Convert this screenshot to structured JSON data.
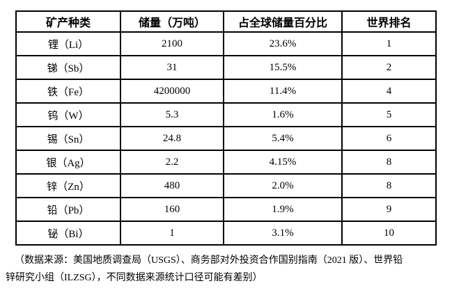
{
  "table": {
    "headers": [
      "矿产种类",
      "储量（万吨）",
      "占全球储量百分比",
      "世界排名"
    ],
    "rows": [
      [
        "锂（Li）",
        "2100",
        "23.6%",
        "1"
      ],
      [
        "锑（Sb）",
        "31",
        "15.5%",
        "2"
      ],
      [
        "铁（Fe）",
        "4200000",
        "11.4%",
        "4"
      ],
      [
        "钨（W）",
        "5.3",
        "1.6%",
        "5"
      ],
      [
        "锡（Sn）",
        "24.8",
        "5.4%",
        "6"
      ],
      [
        "银（Ag）",
        "2.2",
        "4.15%",
        "8"
      ],
      [
        "锌（Zn）",
        "480",
        "2.0%",
        "8"
      ],
      [
        "铅（Pb）",
        "160",
        "1.9%",
        "9"
      ],
      [
        "铋（Bi）",
        "1",
        "3.1%",
        "10"
      ]
    ]
  },
  "footnote": {
    "line1": "（数据来源：美国地质调查局（USGS）、商务部对外投资合作国别指南（2021 版）、世界铅",
    "line2": "锌研究小组（ILZSG），不同数据来源统计口径可能有差别）"
  },
  "colors": {
    "border": "#000000",
    "text": "#000000",
    "background": "#ffffff"
  }
}
